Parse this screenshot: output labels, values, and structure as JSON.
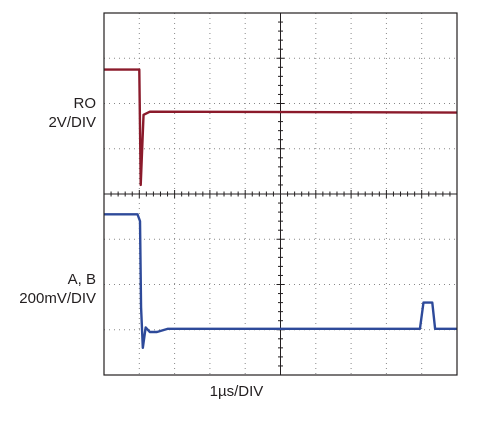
{
  "labels": {
    "ro_name": "RO",
    "ro_scale": "2V/DIV",
    "ab_name": "A, B",
    "ab_scale": "200mV/DIV",
    "time_scale": "1µs/DIV"
  },
  "colors": {
    "ro_trace": "#8b1a2b",
    "ab_trace": "#2e4a9a",
    "grid": "#888888",
    "frame": "#231f20"
  },
  "chart_data": {
    "type": "line",
    "grid": true,
    "divisions": {
      "x": 10,
      "y": 8
    },
    "xlabel": "1µs/DIV",
    "series": [
      {
        "name": "RO",
        "points": [
          [
            0,
            6.75
          ],
          [
            1.0,
            6.75
          ],
          [
            1.04,
            4.2
          ],
          [
            1.12,
            5.75
          ],
          [
            1.3,
            5.82
          ],
          [
            10,
            5.8
          ]
        ]
      },
      {
        "name": "A, B",
        "points": [
          [
            0,
            3.55
          ],
          [
            0.95,
            3.55
          ],
          [
            1.02,
            3.4
          ],
          [
            1.05,
            1.5
          ],
          [
            1.1,
            0.6
          ],
          [
            1.18,
            1.05
          ],
          [
            1.3,
            0.95
          ],
          [
            1.5,
            0.95
          ],
          [
            1.8,
            1.02
          ],
          [
            8.95,
            1.02
          ],
          [
            9.05,
            1.6
          ],
          [
            9.3,
            1.6
          ],
          [
            9.38,
            1.02
          ],
          [
            10,
            1.02
          ]
        ]
      }
    ]
  }
}
